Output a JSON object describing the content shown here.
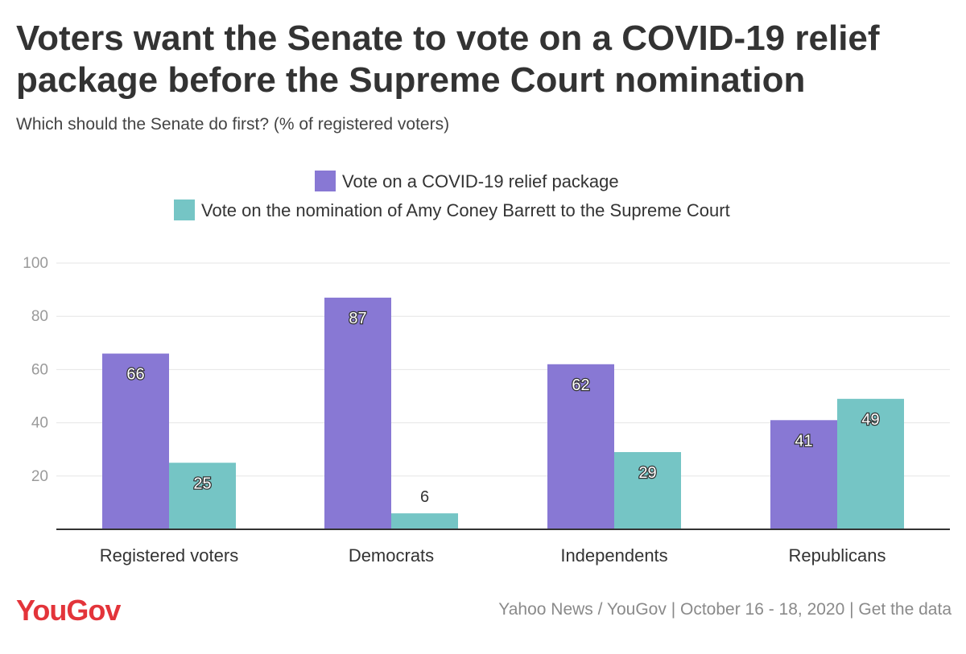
{
  "header": {
    "title": "Voters want the Senate to vote on a COVID-19 relief package before the Supreme Court nomination",
    "subtitle": "Which should the Senate do first? (% of registered voters)"
  },
  "footer": {
    "logo": "YouGov",
    "source": "Yahoo News / YouGov | October 16 - 18, 2020 | Get the data"
  },
  "colors": {
    "series1": "#8878d4",
    "series2": "#75c5c5",
    "grid": "#e6e6e6",
    "axis": "#333333",
    "logo": "#e3343a"
  },
  "chart_data": {
    "type": "bar",
    "title": "Voters want the Senate to vote on a COVID-19 relief package before the Supreme Court nomination",
    "subtitle": "Which should the Senate do first? (% of registered voters)",
    "categories": [
      "Registered voters",
      "Democrats",
      "Independents",
      "Republicans"
    ],
    "series": [
      {
        "name": "Vote on a COVID-19 relief package",
        "values": [
          66,
          87,
          62,
          41
        ]
      },
      {
        "name": "Vote on the nomination of Amy Coney Barrett to the Supreme Court",
        "values": [
          25,
          6,
          29,
          49
        ]
      }
    ],
    "yticks": [
      20,
      40,
      60,
      80,
      100
    ],
    "ylim": [
      0,
      100
    ],
    "xlabel": "",
    "ylabel": "",
    "grid": true,
    "legend_position": "top-center"
  }
}
